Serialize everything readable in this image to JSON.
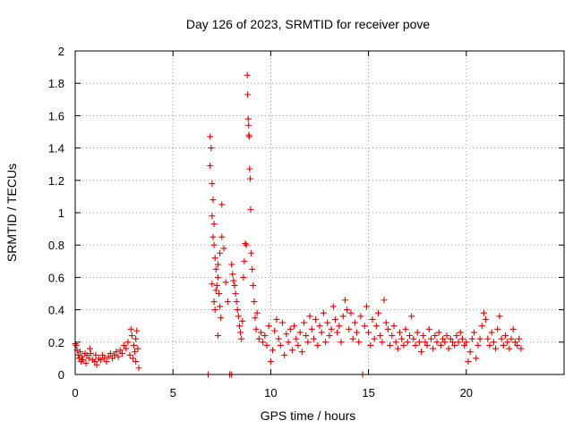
{
  "chart_data": {
    "type": "scatter",
    "title": "Day 126 of 2023, SRMTID for receiver pove",
    "xlabel": "GPS time / hours",
    "ylabel": "SRMTID / TECUs",
    "xlim": [
      0,
      25
    ],
    "ylim": [
      0,
      2
    ],
    "xticks": [
      0,
      5,
      10,
      15,
      20
    ],
    "xtick_labels": [
      "0",
      "5",
      "10",
      "15",
      "20"
    ],
    "yticks": [
      0,
      0.2,
      0.4,
      0.6,
      0.8,
      1,
      1.2,
      1.4,
      1.6,
      1.8,
      2
    ],
    "ytick_labels": [
      "0",
      "0.2",
      "0.4",
      "0.6",
      "0.8",
      "1",
      "1.2",
      "1.4",
      "1.6",
      "1.8",
      "2"
    ],
    "grid": true,
    "marker": "+",
    "color": "#e00000",
    "series": [
      {
        "name": "SRMTID",
        "points": [
          [
            0.0,
            0.19
          ],
          [
            0.05,
            0.18
          ],
          [
            0.1,
            0.15
          ],
          [
            0.15,
            0.12
          ],
          [
            0.2,
            0.1
          ],
          [
            0.25,
            0.14
          ],
          [
            0.3,
            0.08
          ],
          [
            0.35,
            0.11
          ],
          [
            0.4,
            0.09
          ],
          [
            0.5,
            0.13
          ],
          [
            0.55,
            0.07
          ],
          [
            0.6,
            0.12
          ],
          [
            0.7,
            0.1
          ],
          [
            0.75,
            0.16
          ],
          [
            0.8,
            0.13
          ],
          [
            0.9,
            0.09
          ],
          [
            1.0,
            0.08
          ],
          [
            1.05,
            0.12
          ],
          [
            1.1,
            0.06
          ],
          [
            1.2,
            0.1
          ],
          [
            1.3,
            0.09
          ],
          [
            1.4,
            0.12
          ],
          [
            1.5,
            0.1
          ],
          [
            1.6,
            0.08
          ],
          [
            1.7,
            0.11
          ],
          [
            1.8,
            0.13
          ],
          [
            1.9,
            0.1
          ],
          [
            2.0,
            0.12
          ],
          [
            2.1,
            0.14
          ],
          [
            2.2,
            0.11
          ],
          [
            2.3,
            0.15
          ],
          [
            2.4,
            0.13
          ],
          [
            2.5,
            0.18
          ],
          [
            2.6,
            0.16
          ],
          [
            2.7,
            0.2
          ],
          [
            2.8,
            0.12
          ],
          [
            2.85,
            0.28
          ],
          [
            2.9,
            0.24
          ],
          [
            2.95,
            0.1
          ],
          [
            3.0,
            0.18
          ],
          [
            3.05,
            0.14
          ],
          [
            3.1,
            0.22
          ],
          [
            3.15,
            0.27
          ],
          [
            3.2,
            0.16
          ],
          [
            3.25,
            0.04
          ],
          [
            3.1,
            0.08
          ],
          [
            6.8,
            0.0
          ],
          [
            6.9,
            1.47
          ],
          [
            6.95,
            1.4
          ],
          [
            6.9,
            1.29
          ],
          [
            7.0,
            1.18
          ],
          [
            7.05,
            1.08
          ],
          [
            7.0,
            0.98
          ],
          [
            7.1,
            0.93
          ],
          [
            7.05,
            0.85
          ],
          [
            7.1,
            0.8
          ],
          [
            7.15,
            0.72
          ],
          [
            7.2,
            0.65
          ],
          [
            7.0,
            0.56
          ],
          [
            7.1,
            0.45
          ],
          [
            7.25,
            0.55
          ],
          [
            7.3,
            0.6
          ],
          [
            7.35,
            0.5
          ],
          [
            7.4,
            0.42
          ],
          [
            7.3,
            0.24
          ],
          [
            7.45,
            0.35
          ],
          [
            7.5,
            1.05
          ],
          [
            7.5,
            0.85
          ],
          [
            7.4,
            0.75
          ],
          [
            7.3,
            0.68
          ],
          [
            7.2,
            0.52
          ],
          [
            7.15,
            0.4
          ],
          [
            7.6,
            0.78
          ],
          [
            7.7,
            0.57
          ],
          [
            7.8,
            0.45
          ],
          [
            7.9,
            0.0
          ],
          [
            8.0,
            0.0
          ],
          [
            8.0,
            0.68
          ],
          [
            8.05,
            0.62
          ],
          [
            8.1,
            0.58
          ],
          [
            8.15,
            0.55
          ],
          [
            8.2,
            0.5
          ],
          [
            8.25,
            0.45
          ],
          [
            8.3,
            0.4
          ],
          [
            8.35,
            0.36
          ],
          [
            8.4,
            0.3
          ],
          [
            8.45,
            0.26
          ],
          [
            8.5,
            0.22
          ],
          [
            8.55,
            0.33
          ],
          [
            8.6,
            0.6
          ],
          [
            8.65,
            0.7
          ],
          [
            8.7,
            0.81
          ],
          [
            8.75,
            0.8
          ],
          [
            8.8,
            1.85
          ],
          [
            8.82,
            1.73
          ],
          [
            8.85,
            1.58
          ],
          [
            8.87,
            1.54
          ],
          [
            8.88,
            1.48
          ],
          [
            8.9,
            1.47
          ],
          [
            8.92,
            1.27
          ],
          [
            8.95,
            1.21
          ],
          [
            8.97,
            1.02
          ],
          [
            9.0,
            0.75
          ],
          [
            9.05,
            0.65
          ],
          [
            9.1,
            0.55
          ],
          [
            9.15,
            0.45
          ],
          [
            9.2,
            0.35
          ],
          [
            9.25,
            0.28
          ],
          [
            9.3,
            0.38
          ],
          [
            9.4,
            0.22
          ],
          [
            9.5,
            0.26
          ],
          [
            9.6,
            0.2
          ],
          [
            9.7,
            0.24
          ],
          [
            9.8,
            0.18
          ],
          [
            9.9,
            0.3
          ],
          [
            10.0,
            0.08
          ],
          [
            10.1,
            0.15
          ],
          [
            10.2,
            0.27
          ],
          [
            10.3,
            0.34
          ],
          [
            10.4,
            0.22
          ],
          [
            10.5,
            0.18
          ],
          [
            10.6,
            0.32
          ],
          [
            10.7,
            0.12
          ],
          [
            10.8,
            0.25
          ],
          [
            10.9,
            0.2
          ],
          [
            11.0,
            0.28
          ],
          [
            11.1,
            0.15
          ],
          [
            11.2,
            0.3
          ],
          [
            11.3,
            0.22
          ],
          [
            11.4,
            0.18
          ],
          [
            11.5,
            0.26
          ],
          [
            11.6,
            0.14
          ],
          [
            11.7,
            0.32
          ],
          [
            11.8,
            0.24
          ],
          [
            11.9,
            0.2
          ],
          [
            12.0,
            0.36
          ],
          [
            12.1,
            0.28
          ],
          [
            12.2,
            0.22
          ],
          [
            12.3,
            0.34
          ],
          [
            12.4,
            0.18
          ],
          [
            12.5,
            0.3
          ],
          [
            12.6,
            0.26
          ],
          [
            12.7,
            0.38
          ],
          [
            12.8,
            0.2
          ],
          [
            12.9,
            0.32
          ],
          [
            13.0,
            0.24
          ],
          [
            13.1,
            0.28
          ],
          [
            13.2,
            0.42
          ],
          [
            13.3,
            0.34
          ],
          [
            13.4,
            0.26
          ],
          [
            13.5,
            0.3
          ],
          [
            13.6,
            0.2
          ],
          [
            13.7,
            0.36
          ],
          [
            13.8,
            0.46
          ],
          [
            13.9,
            0.4
          ],
          [
            14.0,
            0.28
          ],
          [
            14.1,
            0.38
          ],
          [
            14.2,
            0.22
          ],
          [
            14.3,
            0.32
          ],
          [
            14.4,
            0.26
          ],
          [
            14.5,
            0.2
          ],
          [
            14.6,
            0.36
          ],
          [
            14.7,
            0.0
          ],
          [
            14.8,
            0.3
          ],
          [
            14.9,
            0.42
          ],
          [
            15.0,
            0.26
          ],
          [
            15.1,
            0.18
          ],
          [
            15.2,
            0.34
          ],
          [
            15.3,
            0.22
          ],
          [
            15.4,
            0.3
          ],
          [
            15.5,
            0.38
          ],
          [
            15.6,
            0.24
          ],
          [
            15.7,
            0.2
          ],
          [
            15.8,
            0.46
          ],
          [
            15.9,
            0.32
          ],
          [
            16.0,
            0.28
          ],
          [
            16.1,
            0.18
          ],
          [
            16.2,
            0.24
          ],
          [
            16.3,
            0.3
          ],
          [
            16.4,
            0.2
          ],
          [
            16.5,
            0.16
          ],
          [
            16.6,
            0.26
          ],
          [
            16.7,
            0.22
          ],
          [
            16.8,
            0.18
          ],
          [
            16.9,
            0.28
          ],
          [
            17.0,
            0.2
          ],
          [
            17.1,
            0.24
          ],
          [
            17.2,
            0.36
          ],
          [
            17.3,
            0.22
          ],
          [
            17.4,
            0.18
          ],
          [
            17.5,
            0.26
          ],
          [
            17.6,
            0.2
          ],
          [
            17.7,
            0.14
          ],
          [
            17.8,
            0.24
          ],
          [
            17.9,
            0.2
          ],
          [
            18.0,
            0.18
          ],
          [
            18.1,
            0.28
          ],
          [
            18.2,
            0.22
          ],
          [
            18.3,
            0.16
          ],
          [
            18.4,
            0.24
          ],
          [
            18.5,
            0.2
          ],
          [
            18.6,
            0.26
          ],
          [
            18.7,
            0.18
          ],
          [
            18.8,
            0.22
          ],
          [
            18.9,
            0.2
          ],
          [
            19.0,
            0.24
          ],
          [
            19.1,
            0.16
          ],
          [
            19.2,
            0.22
          ],
          [
            19.3,
            0.2
          ],
          [
            19.4,
            0.18
          ],
          [
            19.5,
            0.24
          ],
          [
            19.6,
            0.2
          ],
          [
            19.7,
            0.26
          ],
          [
            19.8,
            0.22
          ],
          [
            19.9,
            0.18
          ],
          [
            20.0,
            0.2
          ],
          [
            20.1,
            0.08
          ],
          [
            20.2,
            0.14
          ],
          [
            20.3,
            0.22
          ],
          [
            20.4,
            0.26
          ],
          [
            20.5,
            0.1
          ],
          [
            20.6,
            0.18
          ],
          [
            20.7,
            0.22
          ],
          [
            20.8,
            0.3
          ],
          [
            20.9,
            0.38
          ],
          [
            21.0,
            0.34
          ],
          [
            21.1,
            0.22
          ],
          [
            21.2,
            0.18
          ],
          [
            21.3,
            0.26
          ],
          [
            21.4,
            0.2
          ],
          [
            21.5,
            0.16
          ],
          [
            21.6,
            0.28
          ],
          [
            21.7,
            0.36
          ],
          [
            21.8,
            0.22
          ],
          [
            21.9,
            0.18
          ],
          [
            22.0,
            0.24
          ],
          [
            22.1,
            0.2
          ],
          [
            22.2,
            0.16
          ],
          [
            22.3,
            0.22
          ],
          [
            22.4,
            0.28
          ],
          [
            22.5,
            0.2
          ],
          [
            22.6,
            0.18
          ],
          [
            22.7,
            0.22
          ],
          [
            22.8,
            0.16
          ]
        ]
      }
    ]
  }
}
